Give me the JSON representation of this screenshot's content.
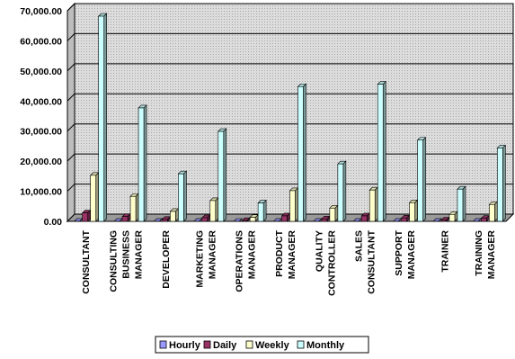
{
  "chart_data": {
    "type": "bar",
    "title": "",
    "xlabel": "",
    "ylabel": "",
    "ylim": [
      0,
      70000
    ],
    "yticks": [
      0,
      10000,
      20000,
      30000,
      40000,
      50000,
      60000,
      70000
    ],
    "ytick_labels": [
      "0.00",
      "10,000.00",
      "20,000.00",
      "30,000.00",
      "40,000.00",
      "50,000.00",
      "60,000.00",
      "70,000.00"
    ],
    "grid": true,
    "legend_position": "bottom",
    "categories": [
      [
        "CONSULTANT"
      ],
      [
        "CONSULTING",
        "BUSINESS",
        "MANAGER"
      ],
      [
        "DEVELOPER"
      ],
      [
        "MARKETING",
        "MANAGER"
      ],
      [
        "OPERATIONS",
        "MANAGER"
      ],
      [
        "PRODUCT",
        "MANAGER"
      ],
      [
        "QUALITY",
        "CONTROLLER"
      ],
      [
        "SALES",
        "CONSULTANT"
      ],
      [
        "SUPPORT",
        "MANAGER"
      ],
      [
        "TRAINER"
      ],
      [
        "TRAINING",
        "MANAGER"
      ]
    ],
    "series": [
      {
        "name": "Hourly",
        "color": "#9999ff",
        "values": [
          35,
          20,
          8,
          15,
          3,
          22,
          10,
          22,
          13,
          5,
          12
        ]
      },
      {
        "name": "Daily",
        "color": "#993366",
        "values": [
          2800,
          1600,
          650,
          1200,
          250,
          1800,
          800,
          1800,
          1100,
          450,
          1000
        ]
      },
      {
        "name": "Weekly",
        "color": "#ffffcc",
        "values": [
          15300,
          8300,
          3300,
          6900,
          1300,
          10200,
          4400,
          10400,
          6200,
          2300,
          5600
        ]
      },
      {
        "name": "Monthly",
        "color": "#ccffff",
        "values": [
          68200,
          37700,
          15800,
          29900,
          6100,
          44800,
          19100,
          45600,
          27000,
          10700,
          24400
        ]
      }
    ]
  }
}
